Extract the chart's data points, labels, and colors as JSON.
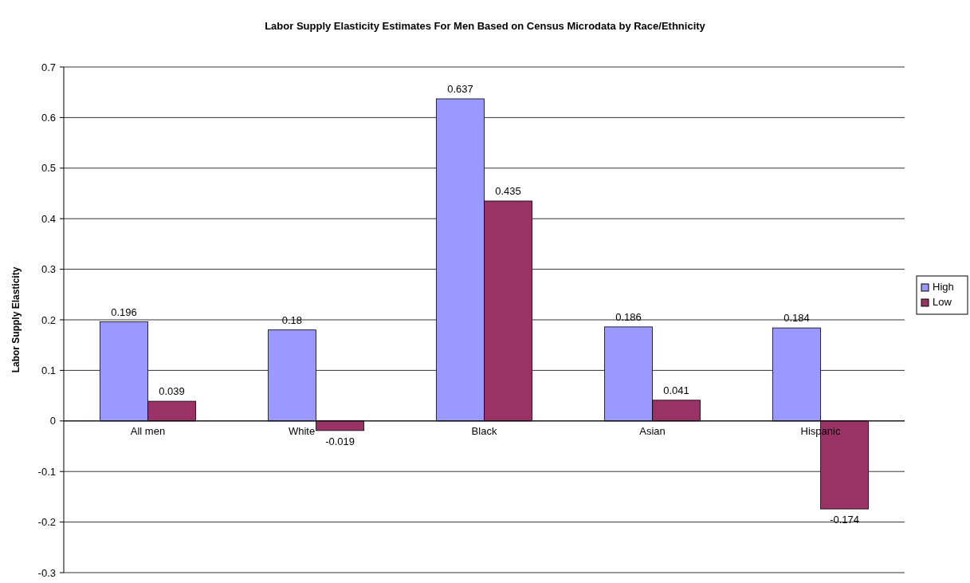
{
  "chart_data": {
    "type": "bar",
    "title": "Labor Supply Elasticity Estimates For Men Based on Census Microdata by Race/Ethnicity",
    "ylabel": "Labor Supply Elasticity",
    "categories": [
      "All men",
      "White",
      "Black",
      "Asian",
      "Hispanic"
    ],
    "series": [
      {
        "name": "High",
        "color": "#9999ff",
        "values": [
          0.196,
          0.18,
          0.637,
          0.186,
          0.184
        ]
      },
      {
        "name": "Low",
        "color": "#993366",
        "values": [
          0.039,
          -0.019,
          0.435,
          0.041,
          -0.174
        ]
      }
    ],
    "ylim": [
      -0.3,
      0.7
    ],
    "yticks": [
      -0.3,
      -0.2,
      -0.1,
      0,
      0.1,
      0.2,
      0.3,
      0.4,
      0.5,
      0.6,
      0.7
    ],
    "grid": "y",
    "legend": "right",
    "data_labels": true
  }
}
